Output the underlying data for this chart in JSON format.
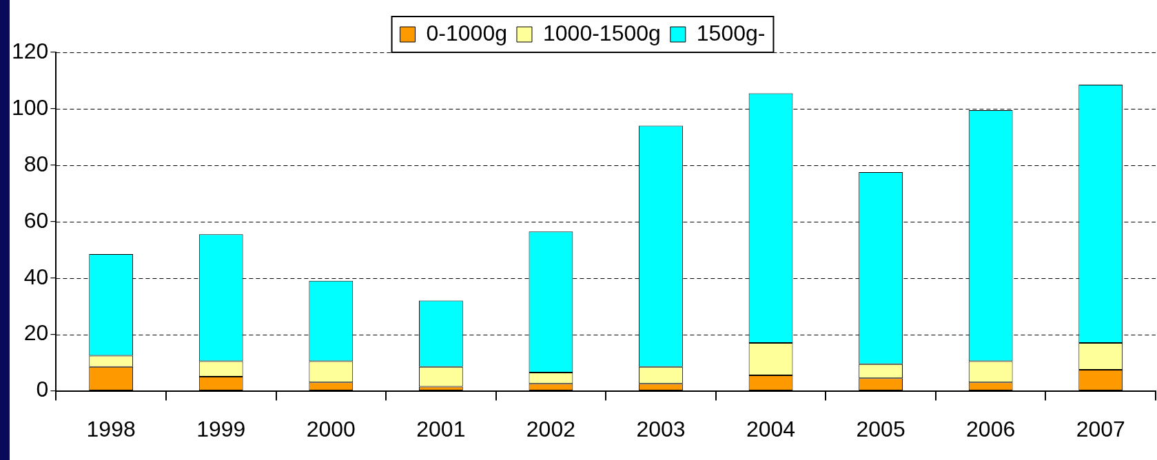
{
  "chart_data": {
    "type": "bar",
    "stacked": true,
    "categories": [
      "1998",
      "1999",
      "2000",
      "2001",
      "2002",
      "2003",
      "2004",
      "2005",
      "2006",
      "2007"
    ],
    "series": [
      {
        "name": "0-1000g",
        "color": "#ff9900",
        "values": [
          8.5,
          5,
          3,
          1.5,
          2.5,
          2.5,
          5.5,
          4.5,
          3,
          7.5
        ]
      },
      {
        "name": "1000-1500g",
        "color": "#ffff99",
        "values": [
          4,
          5.5,
          7.5,
          7,
          4,
          6,
          11.5,
          5,
          7.5,
          9.5
        ]
      },
      {
        "name": "1500g-",
        "color": "#00ffff",
        "values": [
          36,
          45,
          28.5,
          23.5,
          50,
          85.5,
          88.5,
          68,
          89,
          91.5
        ]
      }
    ],
    "ylim": [
      0,
      120
    ],
    "yticks": [
      0,
      20,
      40,
      60,
      80,
      100,
      120
    ],
    "grid": "y",
    "legend": "top"
  }
}
